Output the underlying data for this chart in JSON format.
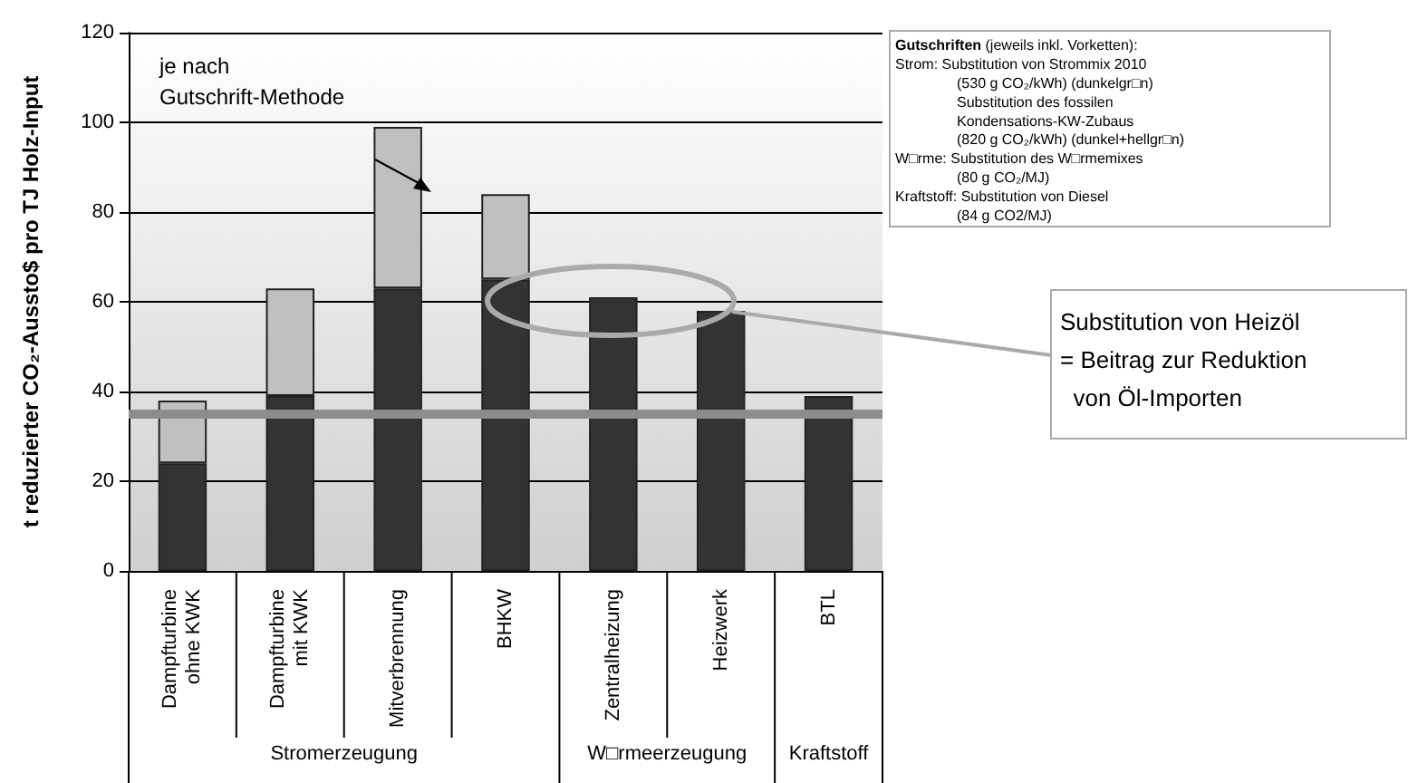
{
  "chart_data": {
    "type": "bar",
    "stacked": true,
    "ylabel": "t reduzierter CO₂-Aussto$ pro TJ Holz-Input",
    "categories": [
      "Dampfturbine\nohne KWK",
      "Dampfturbine\nmit KWK",
      "Mitverbrennung",
      "BHKW",
      "Zentralheizung",
      "Heizwerk",
      "BTL"
    ],
    "series": [
      {
        "color": "#333333",
        "values": [
          24,
          39,
          63,
          65,
          61,
          58,
          39
        ]
      },
      {
        "color": "#c0c0c0",
        "values": [
          14,
          24,
          36,
          19,
          null,
          null,
          null
        ]
      }
    ],
    "ylim": [
      0,
      120
    ],
    "yticks": [
      0,
      20,
      40,
      60,
      80,
      100,
      120
    ],
    "grid": "y",
    "ref_lines": [
      {
        "axis": "y",
        "value": 35,
        "color": "#8c8c8c"
      }
    ],
    "annotations": [
      "je nach\nGutschrift-Methode",
      "Gutschriften (jeweils inkl. Vorketten):\nStrom: Substitution von Strommix 2010\n(530 g CO₂/kWh) (dunkelgr□n)\nSubstitution des fossilen\nKondensations-KW-Zubaus\n(820 g CO₂/kWh) (dunkel+hellgr□n)\nW□rme: Substitution des W□rmemixes\n(80 g CO₂/MJ)\nKraftstoff: Substitution von Diesel\n(84 g CO2/MJ)",
      "Substitution von Heizöl\n= Beitrag zur Reduktion\nvon Öl-Importen",
      "Stromerzeugung",
      "W□rmeerzeugung",
      "Kraftstoff"
    ]
  }
}
